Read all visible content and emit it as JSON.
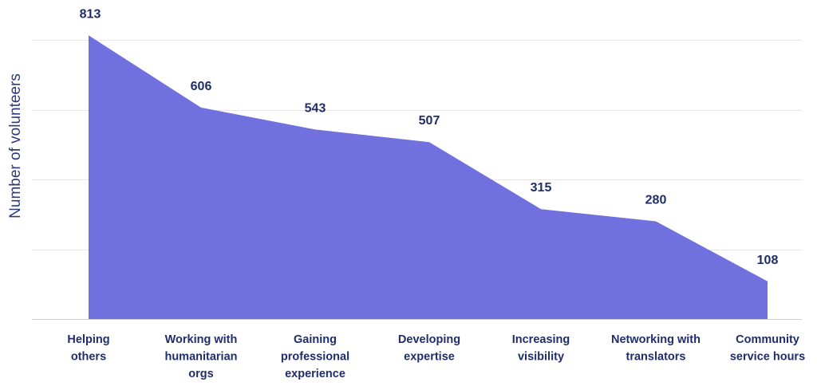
{
  "chart_data": {
    "type": "area",
    "title": "",
    "xlabel": "",
    "ylabel": "Number of volunteers",
    "categories": [
      [
        "Helping",
        "others"
      ],
      [
        "Working with",
        "humanitarian",
        "orgs"
      ],
      [
        "Gaining",
        "professional",
        "experience"
      ],
      [
        "Developing",
        "expertise"
      ],
      [
        "Increasing",
        "visibility"
      ],
      [
        "Networking with",
        "translators"
      ],
      [
        "Community",
        "service hours"
      ]
    ],
    "values": [
      813,
      606,
      543,
      507,
      315,
      280,
      108
    ],
    "data_labels": [
      "813",
      "606",
      "543",
      "507",
      "315",
      "280",
      "108"
    ],
    "ylim": [
      0,
      800
    ],
    "grid": true,
    "legend": "none",
    "colors": {
      "area": "#7070df",
      "text": "#1f2d6b",
      "grid": "#e6e6e6"
    }
  }
}
